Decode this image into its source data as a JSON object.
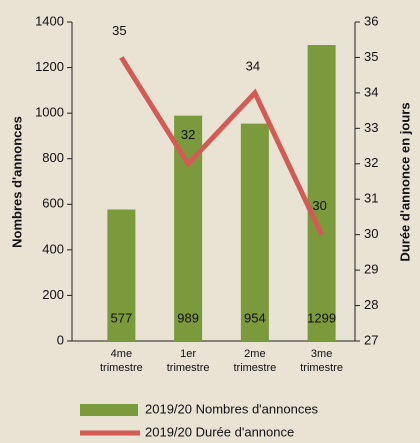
{
  "chart_data": {
    "type": "bar",
    "categories": [
      "4me trimestre",
      "1er trimestre",
      "2me trimestre",
      "3me trimestre"
    ],
    "series": [
      {
        "name": "2019/20 Nombres d'annonces",
        "type": "bar",
        "axis": "y",
        "color": "#7b9a3c",
        "values": [
          577,
          989,
          954,
          1299
        ]
      },
      {
        "name": "2019/20 Durée d'annonce",
        "type": "line",
        "axis": "y2",
        "color": "#d45a55",
        "values": [
          35,
          32,
          34,
          30
        ]
      }
    ],
    "ylabel": "Nombres d'annonces",
    "y2label": "Durée d'annonce en jours",
    "ylim": [
      0,
      1400
    ],
    "yticks": [
      0,
      200,
      400,
      600,
      800,
      1000,
      1200,
      1400
    ],
    "y2lim": [
      27,
      36
    ],
    "y2ticks": [
      27,
      28,
      29,
      30,
      31,
      32,
      33,
      34,
      35,
      36
    ],
    "grid": false
  }
}
